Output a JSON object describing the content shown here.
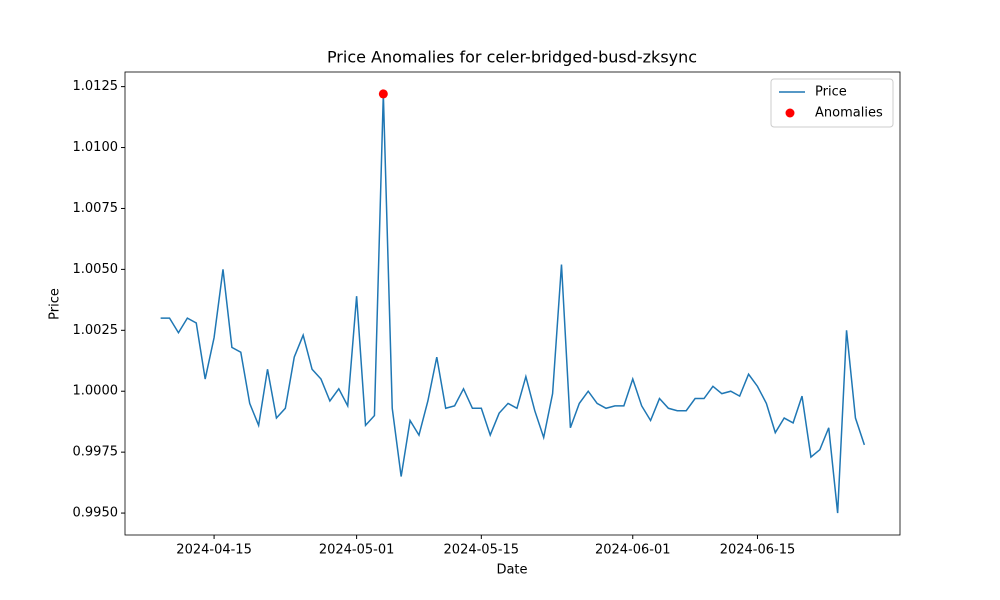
{
  "chart_data": {
    "type": "line",
    "title": "Price Anomalies for celer-bridged-busd-zksync",
    "xlabel": "Date",
    "ylabel": "Price",
    "x": [
      "2024-04-09",
      "2024-04-10",
      "2024-04-11",
      "2024-04-12",
      "2024-04-13",
      "2024-04-14",
      "2024-04-15",
      "2024-04-16",
      "2024-04-17",
      "2024-04-18",
      "2024-04-19",
      "2024-04-20",
      "2024-04-21",
      "2024-04-22",
      "2024-04-23",
      "2024-04-24",
      "2024-04-25",
      "2024-04-26",
      "2024-04-27",
      "2024-04-28",
      "2024-04-29",
      "2024-04-30",
      "2024-05-01",
      "2024-05-02",
      "2024-05-03",
      "2024-05-04",
      "2024-05-05",
      "2024-05-06",
      "2024-05-07",
      "2024-05-08",
      "2024-05-09",
      "2024-05-10",
      "2024-05-11",
      "2024-05-12",
      "2024-05-13",
      "2024-05-14",
      "2024-05-15",
      "2024-05-16",
      "2024-05-17",
      "2024-05-18",
      "2024-05-19",
      "2024-05-20",
      "2024-05-21",
      "2024-05-22",
      "2024-05-23",
      "2024-05-24",
      "2024-05-25",
      "2024-05-26",
      "2024-05-27",
      "2024-05-28",
      "2024-05-29",
      "2024-05-30",
      "2024-05-31",
      "2024-06-01",
      "2024-06-02",
      "2024-06-03",
      "2024-06-04",
      "2024-06-05",
      "2024-06-06",
      "2024-06-07",
      "2024-06-08",
      "2024-06-09",
      "2024-06-10",
      "2024-06-11",
      "2024-06-12",
      "2024-06-13",
      "2024-06-14",
      "2024-06-15",
      "2024-06-16",
      "2024-06-17",
      "2024-06-18",
      "2024-06-19",
      "2024-06-20",
      "2024-06-21",
      "2024-06-22",
      "2024-06-23",
      "2024-06-24",
      "2024-06-25",
      "2024-06-26",
      "2024-06-27"
    ],
    "series": [
      {
        "name": "Price",
        "color": "#1f77b4",
        "type": "line",
        "values": [
          1.003,
          1.003,
          1.0024,
          1.003,
          1.0028,
          1.0005,
          1.0022,
          1.005,
          1.0018,
          1.0016,
          0.9995,
          0.9986,
          1.0009,
          0.9989,
          0.9993,
          1.0014,
          1.0023,
          1.0009,
          1.0005,
          0.9996,
          1.0001,
          0.9994,
          1.0039,
          0.9986,
          0.999,
          1.0122,
          0.9993,
          0.9965,
          0.9988,
          0.9982,
          0.9996,
          1.0014,
          0.9993,
          0.9994,
          1.0001,
          0.9993,
          0.9993,
          0.9982,
          0.9991,
          0.9995,
          0.9993,
          1.0006,
          0.9992,
          0.9981,
          0.9999,
          1.0052,
          0.9985,
          0.9995,
          1.0,
          0.9995,
          0.9993,
          0.9994,
          0.9994,
          1.0005,
          0.9994,
          0.9988,
          0.9997,
          0.9993,
          0.9992,
          0.9992,
          0.9997,
          0.9997,
          1.0002,
          0.9999,
          1.0,
          0.9998,
          1.0007,
          1.0002,
          0.9995,
          0.9983,
          0.9989,
          0.9987,
          0.9998,
          0.9973,
          0.9976,
          0.9985,
          0.995,
          1.0025,
          0.9989,
          0.9978
        ]
      },
      {
        "name": "Anomalies",
        "color": "#ff0000",
        "type": "scatter",
        "x": [
          "2024-05-04"
        ],
        "values": [
          1.0122
        ]
      }
    ],
    "xlim": [
      "2024-04-05",
      "2024-07-01"
    ],
    "xticks": [
      "2024-04-15",
      "2024-05-01",
      "2024-05-15",
      "2024-06-01",
      "2024-06-15"
    ],
    "ylim": [
      0.9941,
      1.0131
    ],
    "yticks": [
      {
        "value": 0.995,
        "label": "0.9950"
      },
      {
        "value": 0.9975,
        "label": "0.9975"
      },
      {
        "value": 1.0,
        "label": "1.0000"
      },
      {
        "value": 1.0025,
        "label": "1.0025"
      },
      {
        "value": 1.005,
        "label": "1.0050"
      },
      {
        "value": 1.0075,
        "label": "1.0075"
      },
      {
        "value": 1.01,
        "label": "1.0100"
      },
      {
        "value": 1.0125,
        "label": "1.0125"
      }
    ],
    "legend": "upper right"
  }
}
